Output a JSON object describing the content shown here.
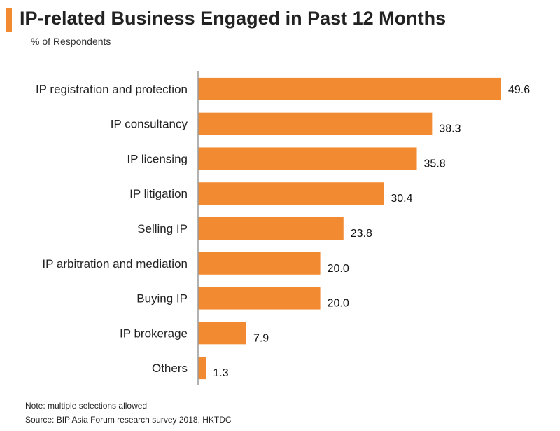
{
  "header": {
    "title": "IP-related Business Engaged in Past 12 Months",
    "subtitle": "% of Respondents",
    "accent_color": "#F28A31"
  },
  "chart_data": {
    "type": "bar",
    "orientation": "horizontal",
    "title": "IP-related Business Engaged in Past 12 Months",
    "ylabel": "% of Respondents",
    "categories": [
      "IP registration and protection",
      "IP consultancy",
      "IP licensing",
      "IP litigation",
      "Selling IP",
      "IP arbitration and mediation",
      "Buying IP",
      "IP brokerage",
      "Others"
    ],
    "values": [
      49.6,
      38.3,
      35.8,
      30.4,
      23.8,
      20.0,
      20.0,
      7.9,
      1.3
    ],
    "value_labels": [
      "49.6",
      "38.3",
      "35.8",
      "30.4",
      "23.8",
      "20.0",
      "20.0",
      "7.9",
      "1.3"
    ],
    "xlim": [
      0,
      50
    ],
    "grid": false,
    "legend": "none",
    "bar_color": "#F28A31",
    "axis_color": "#999999"
  },
  "footer": {
    "note": "Note: multiple selections allowed",
    "source": "Source: BIP Asia Forum research survey 2018, HKTDC"
  }
}
